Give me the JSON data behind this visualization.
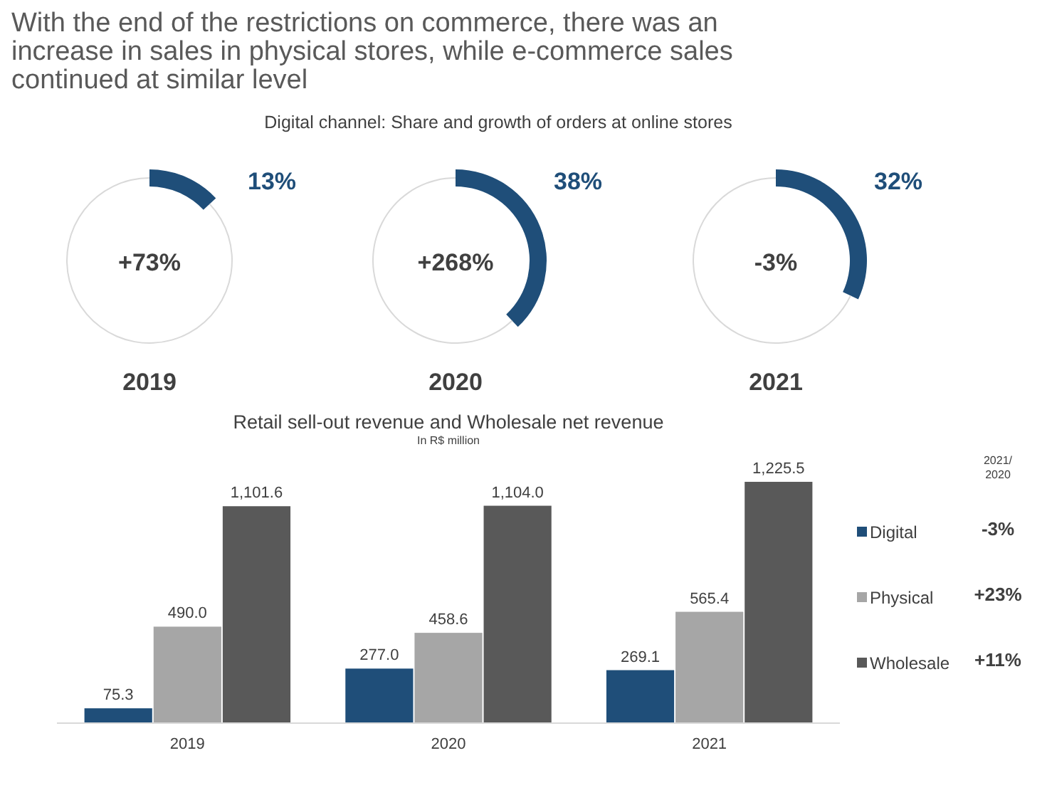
{
  "chart_data": [
    {
      "type": "other",
      "title": "With the end of the restrictions on commerce, there was an increase in sales in physical stores, while e-commerce sales continued at similar level",
      "subtitle": "Digital channel: Share and growth of orders at online stores"
    },
    {
      "type": "donut",
      "title": "2019",
      "categories": [
        null,
        null
      ],
      "values": [
        13,
        87
      ],
      "colors": [
        "#1f4e79",
        "#d9d9d9"
      ],
      "value_labels": [
        "13%",
        null
      ],
      "annotations": [
        "+73%"
      ]
    },
    {
      "type": "donut",
      "title": "2020",
      "categories": [
        null,
        null
      ],
      "values": [
        38,
        62
      ],
      "colors": [
        "#1f4e79",
        "#d9d9d9"
      ],
      "value_labels": [
        "38%",
        null
      ],
      "annotations": [
        "+268%"
      ]
    },
    {
      "type": "donut",
      "title": "2021",
      "categories": [
        null,
        null
      ],
      "values": [
        32,
        68
      ],
      "colors": [
        "#1f4e79",
        "#d9d9d9"
      ],
      "value_labels": [
        "32%",
        null
      ],
      "annotations": [
        "-3%"
      ]
    },
    {
      "type": "bar",
      "title": "Retail sell-out revenue and Wholesale net revenue",
      "subtitle": "In R$ million",
      "categories": [
        "2019",
        "2020",
        "2021"
      ],
      "legend": "right",
      "series": [
        {
          "name": "Digital",
          "color": "#1f4e79",
          "values": [
            75.3,
            277.0,
            269.1
          ],
          "value_labels": [
            "75.3",
            "277.0",
            "269.1"
          ]
        },
        {
          "name": "Physical",
          "color": "#a6a6a6",
          "values": [
            490.0,
            458.6,
            565.4
          ],
          "value_labels": [
            "490.0",
            "458.6",
            "565.4"
          ]
        },
        {
          "name": "Wholesale",
          "color": "#595959",
          "values": [
            1101.6,
            1104.0,
            1225.5
          ],
          "value_labels": [
            "1,101.6",
            "1,104.0",
            "1,225.5"
          ]
        }
      ],
      "annotations": [
        "2021/ 2020",
        "-3%",
        "+23%",
        "+11%"
      ]
    }
  ]
}
